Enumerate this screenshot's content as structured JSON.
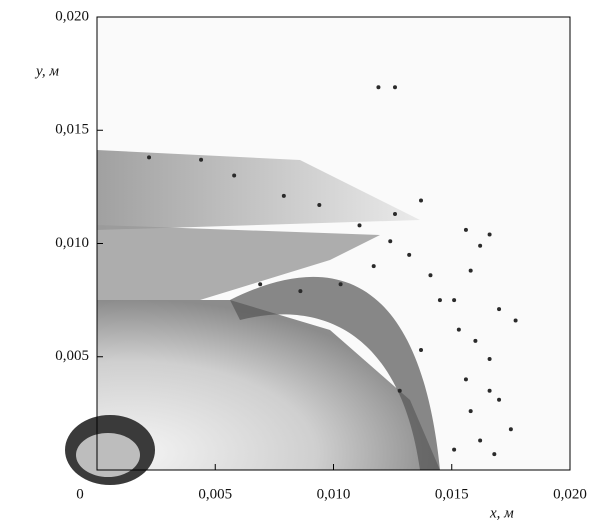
{
  "chart_data": {
    "type": "scatter",
    "xlabel": "x, м",
    "ylabel": "y, м",
    "xlim": [
      0,
      0.02
    ],
    "ylim": [
      0,
      0.02
    ],
    "xticks": [
      {
        "value": 0,
        "label": "0"
      },
      {
        "value": 0.005,
        "label": "0,005"
      },
      {
        "value": 0.01,
        "label": "0,010"
      },
      {
        "value": 0.015,
        "label": "0,015"
      },
      {
        "value": 0.02,
        "label": "0,020"
      }
    ],
    "yticks": [
      {
        "value": 0.005,
        "label": "0,005"
      },
      {
        "value": 0.01,
        "label": "0,010"
      },
      {
        "value": 0.015,
        "label": "0,015"
      },
      {
        "value": 0.02,
        "label": "0,020"
      }
    ],
    "series": [
      {
        "color": "#2a2a2a",
        "x": [
          0.0119,
          0.0126,
          0.0022,
          0.0044,
          0.0058,
          0.0079,
          0.0094,
          0.0111,
          0.0124,
          0.0132,
          0.0141,
          0.0145,
          0.0156,
          0.0162,
          0.0166,
          0.0158,
          0.0151,
          0.0153,
          0.016,
          0.0166,
          0.017,
          0.0175,
          0.0158,
          0.0162,
          0.0151,
          0.0168,
          0.017,
          0.0177,
          0.0126,
          0.0137,
          0.0117,
          0.0103,
          0.0086,
          0.0069,
          0.0137,
          0.0128,
          0.0166,
          0.0156
        ],
        "values": [
          0.0169,
          0.0169,
          0.0138,
          0.0137,
          0.013,
          0.0121,
          0.0117,
          0.0108,
          0.0101,
          0.0095,
          0.0086,
          0.0075,
          0.0106,
          0.0099,
          0.0104,
          0.0088,
          0.0075,
          0.0062,
          0.0057,
          0.0049,
          0.0031,
          0.0018,
          0.0026,
          0.0013,
          0.0009,
          0.0007,
          0.0071,
          0.0066,
          0.0113,
          0.0119,
          0.009,
          0.0082,
          0.0079,
          0.0082,
          0.0053,
          0.0035,
          0.0035,
          0.004
        ]
      }
    ]
  }
}
